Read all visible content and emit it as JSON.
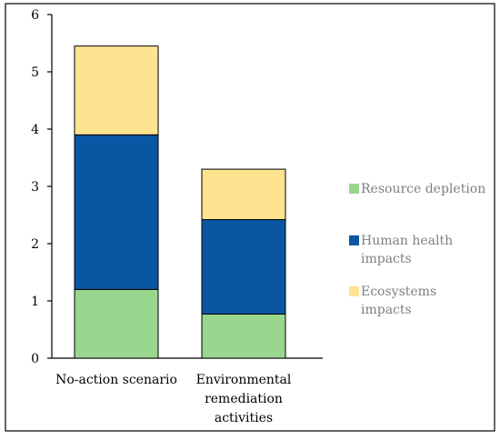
{
  "chart_data": {
    "type": "bar",
    "stacked": true,
    "categories": [
      [
        "No-action scenario"
      ],
      [
        "Environmental",
        "remediation",
        "activities"
      ]
    ],
    "series": [
      {
        "name": [
          "Resource depletion"
        ],
        "color": "#99d68e",
        "values": [
          1.2,
          0.77
        ]
      },
      {
        "name": [
          "Human health",
          "impacts"
        ],
        "color": "#0b56a3",
        "values": [
          2.7,
          1.65
        ]
      },
      {
        "name": [
          "Ecosystems",
          "impacts"
        ],
        "color": "#fee391",
        "values": [
          1.55,
          0.88
        ]
      }
    ],
    "ylim": [
      0,
      6
    ],
    "yticks": [
      0,
      1,
      2,
      3,
      4,
      5,
      6
    ],
    "title": "",
    "xlabel": "",
    "ylabel": "",
    "grid": false,
    "legend_position": "right"
  }
}
